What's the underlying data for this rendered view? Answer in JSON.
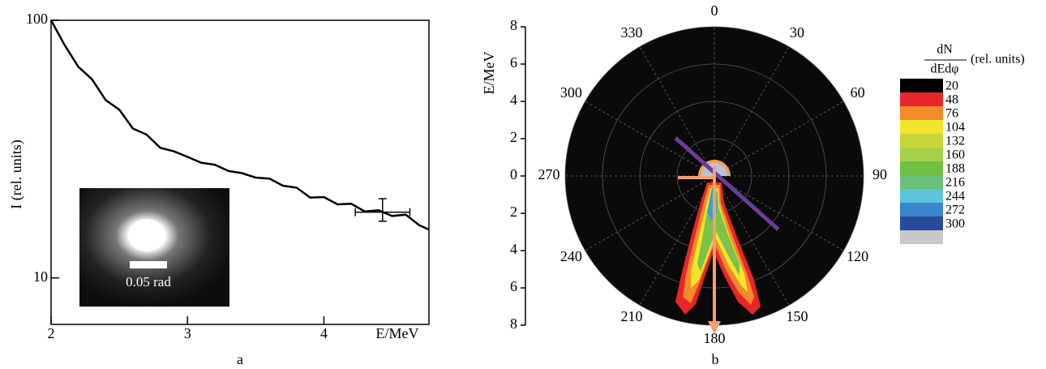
{
  "chart_data": [
    {
      "type": "line",
      "panel_label": "a",
      "xlabel": "E/MeV",
      "ylabel": "I (rel. units)",
      "log_y": true,
      "xlim": [
        2,
        4.77
      ],
      "xticks": [
        2,
        3,
        4
      ],
      "ylim": [
        6.6,
        100
      ],
      "yticks": [
        10,
        100
      ],
      "x": [
        2.0,
        2.1,
        2.2,
        2.3,
        2.4,
        2.5,
        2.6,
        2.7,
        2.8,
        2.9,
        3.0,
        3.1,
        3.2,
        3.3,
        3.4,
        3.5,
        3.6,
        3.7,
        3.8,
        3.9,
        4.0,
        4.1,
        4.2,
        4.3,
        4.4,
        4.5,
        4.6,
        4.7,
        4.77
      ],
      "values": [
        100,
        80,
        66,
        59,
        49,
        45,
        38,
        36,
        32,
        31,
        29.5,
        28,
        27.5,
        26,
        25.5,
        24.5,
        24.3,
        22.8,
        22.4,
        20.5,
        20.6,
        19.3,
        19.4,
        18.1,
        18.3,
        17.4,
        17.6,
        16,
        15.4
      ],
      "color": "#000000",
      "errorbar": {
        "x": 4.43,
        "y": 18,
        "xerr": 0.2,
        "ylow": 16.6,
        "yhigh": 20.3
      },
      "inset_label": "0.05 rad"
    },
    {
      "type": "polar",
      "panel_label": "b",
      "rlabel": "E/MeV",
      "ylim": [
        -8,
        8
      ],
      "yticks": [
        {
          "value": 8,
          "label": "8"
        },
        {
          "value": 6,
          "label": "6"
        },
        {
          "value": 4,
          "label": "4"
        },
        {
          "value": 2,
          "label": "2"
        },
        0,
        {
          "value": -2,
          "label": "2"
        },
        {
          "value": -4,
          "label": "4"
        },
        {
          "value": -6,
          "label": "6"
        },
        {
          "value": -8,
          "label": "8"
        }
      ],
      "thetaticks": [
        0,
        30,
        60,
        90,
        120,
        150,
        180,
        210,
        240,
        270,
        300,
        330
      ],
      "grid": true,
      "colorbar": {
        "numerator": "dN",
        "denominator": "dEdφ",
        "units": "(rel. units)",
        "ticks": [
          20,
          48,
          76,
          104,
          132,
          160,
          188,
          216,
          244,
          272,
          300
        ],
        "colors": [
          "#000000",
          "#e8252a",
          "#f58a2a",
          "#f1e62a",
          "#c6d63a",
          "#a6cf4a",
          "#6fbf45",
          "#6cbf7a",
          "#5cc4dc",
          "#3a86cc",
          "#2a4a9a",
          "#c8c8c8"
        ]
      }
    }
  ]
}
